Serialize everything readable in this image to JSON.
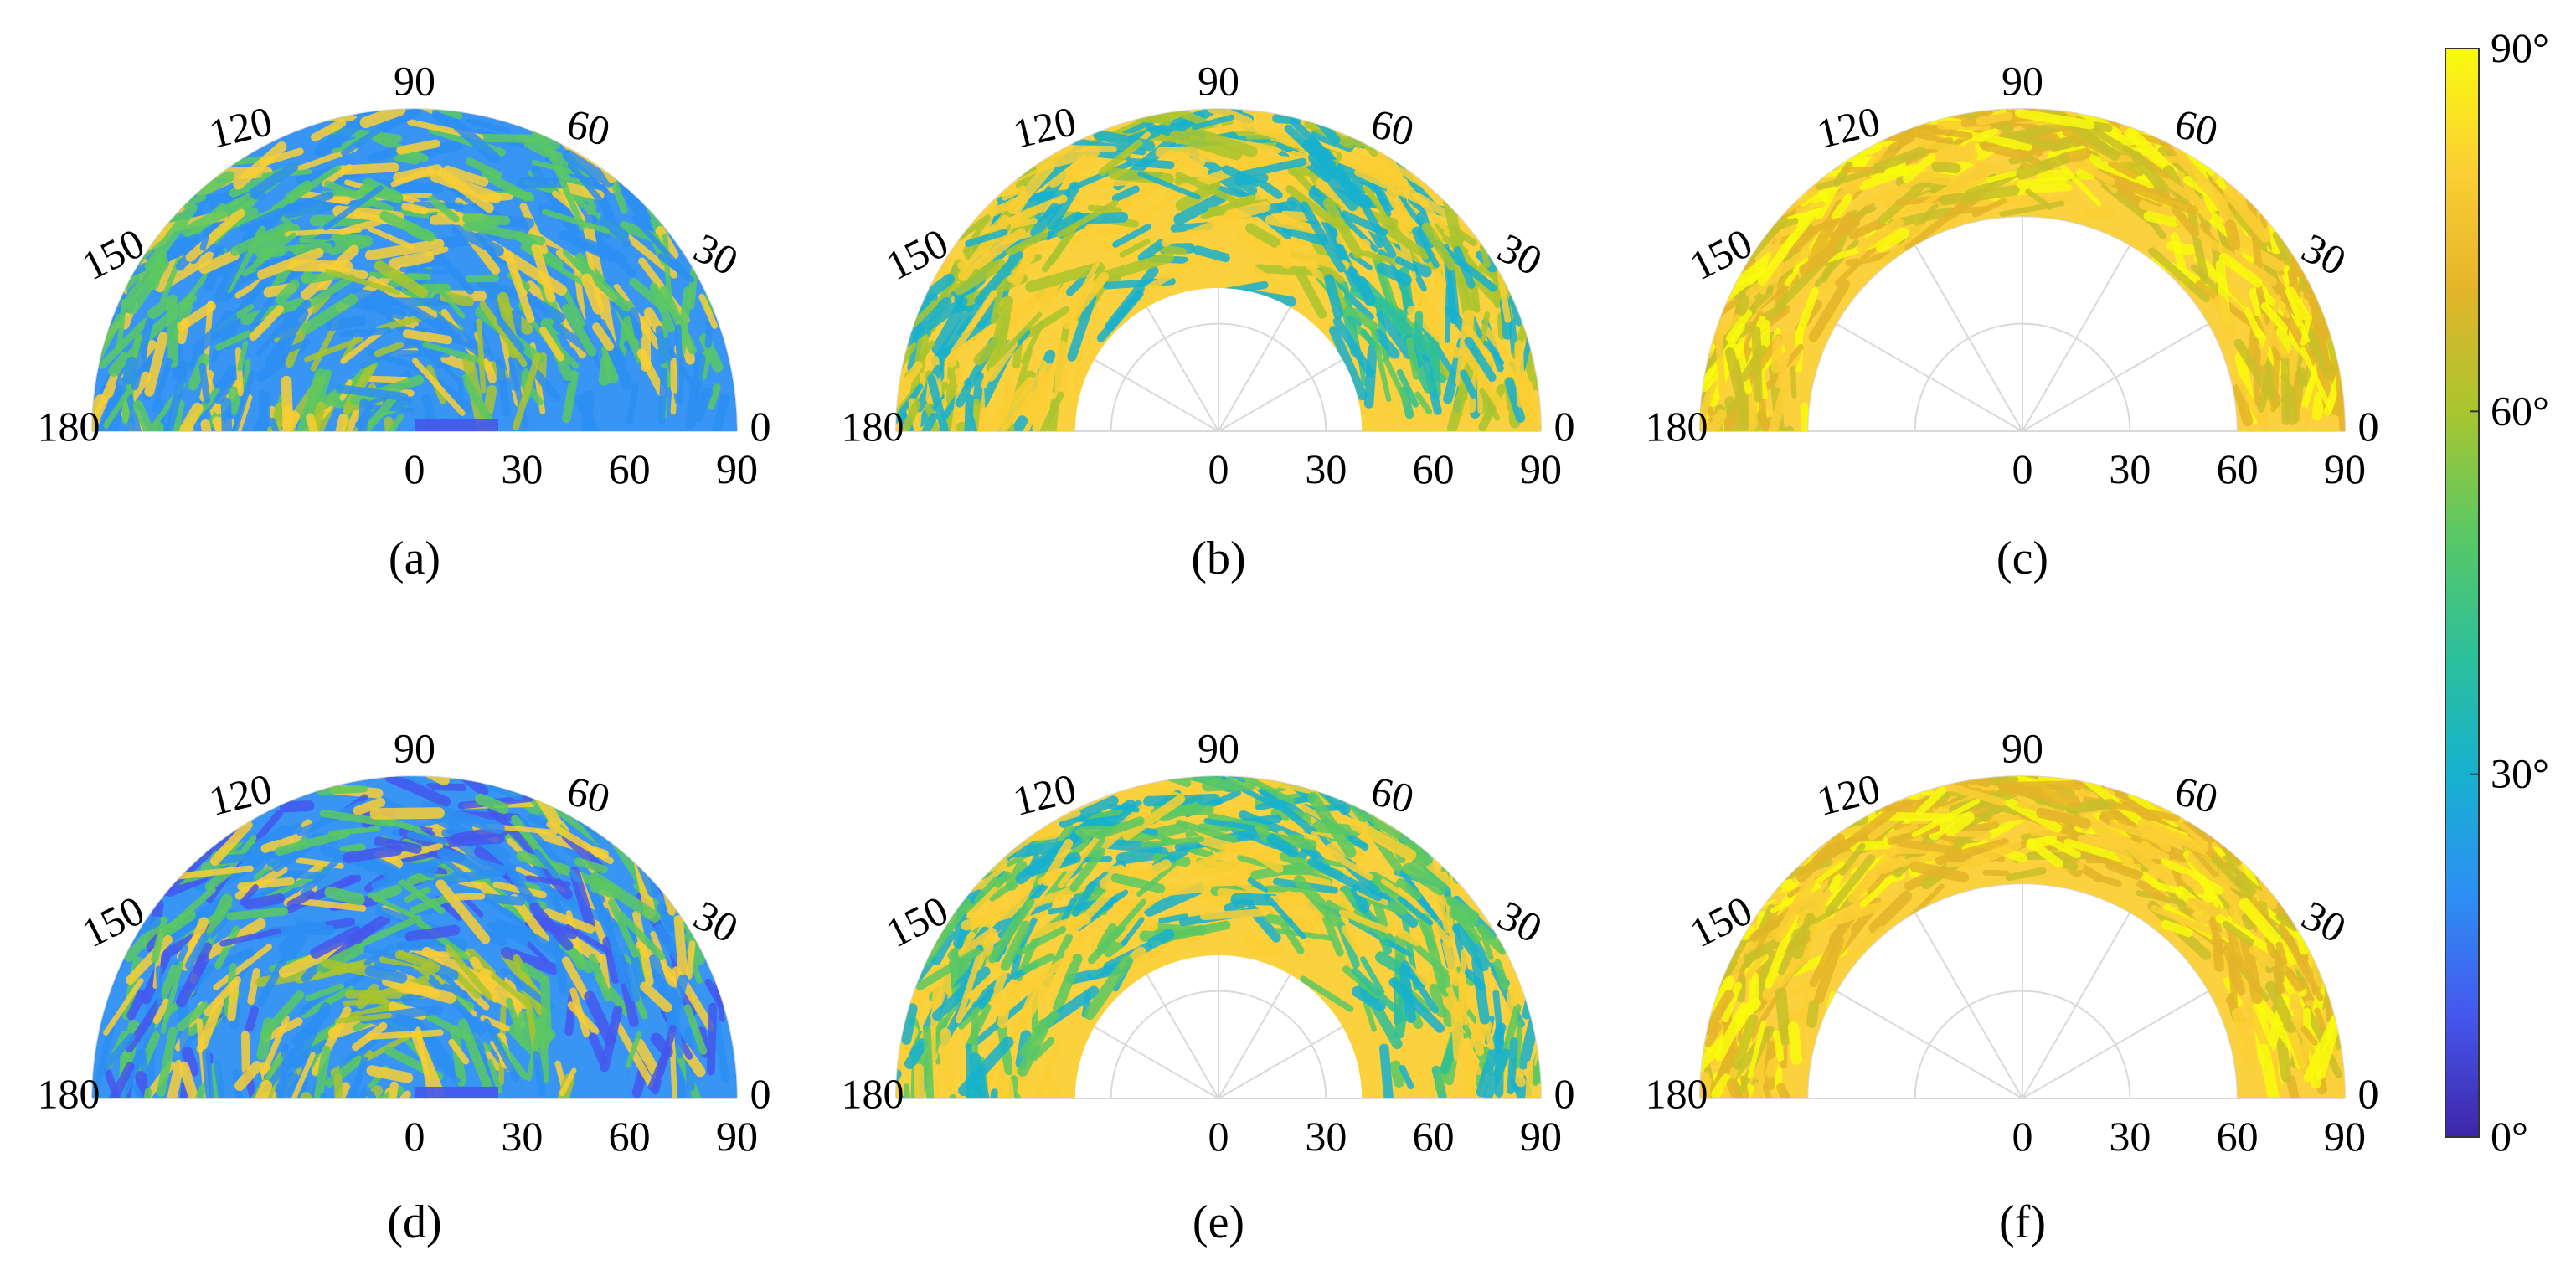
{
  "figure": {
    "colorbar": {
      "colormap": "parula",
      "range_deg": [
        0,
        90
      ],
      "tick_labels": [
        "0°",
        "30°",
        "60°",
        "90°"
      ],
      "tick_values": [
        0,
        30,
        60,
        90
      ],
      "stops": [
        "#3e26a8",
        "#4557ed",
        "#2d8ff3",
        "#17b1cf",
        "#2dc09a",
        "#5bc863",
        "#a9c52f",
        "#e4b42a",
        "#fbcf34",
        "#f9fb0e"
      ]
    },
    "panel_common": {
      "angular_tick_labels": [
        "0",
        "30",
        "60",
        "90",
        "120",
        "150",
        "180"
      ],
      "angular_ticks_deg": [
        0,
        30,
        60,
        90,
        120,
        150,
        180
      ],
      "radial_tick_labels": [
        "0",
        "30",
        "60",
        "90"
      ],
      "radial_ticks": [
        0,
        30,
        60,
        90
      ],
      "r_max": 90
    }
  },
  "chart_data": [
    {
      "type": "polar-scatter",
      "label": "(a)",
      "theta_range_deg": [
        0,
        180
      ],
      "r_range": [
        0,
        90
      ],
      "color_value": "deg",
      "dominant_colors": [
        "#2d8ff3",
        "#5bc863",
        "#fbcf34"
      ],
      "description_values": {
        "r_inner": 0,
        "r_outer": 90
      }
    },
    {
      "type": "polar-scatter",
      "label": "(b)",
      "theta_range_deg": [
        0,
        180
      ],
      "r_range": [
        40,
        90
      ],
      "color_value": "deg",
      "dominant_colors": [
        "#fbcf34",
        "#a9c52f",
        "#17b1cf"
      ],
      "description_values": {
        "r_inner": 40,
        "r_outer": 90
      }
    },
    {
      "type": "polar-scatter",
      "label": "(c)",
      "theta_range_deg": [
        0,
        180
      ],
      "r_range": [
        60,
        90
      ],
      "color_value": "deg",
      "dominant_colors": [
        "#fbcf34",
        "#e4b42a",
        "#c8c02a",
        "#f9fb0e"
      ],
      "description_values": {
        "r_inner": 60,
        "r_outer": 90
      }
    },
    {
      "type": "polar-scatter",
      "label": "(d)",
      "theta_range_deg": [
        0,
        180
      ],
      "r_range": [
        0,
        90
      ],
      "color_value": "deg",
      "dominant_colors": [
        "#2d8ff3",
        "#5bc863",
        "#fbcf34",
        "#4557ed"
      ],
      "description_values": {
        "r_inner": 0,
        "r_outer": 90
      }
    },
    {
      "type": "polar-scatter",
      "label": "(e)",
      "theta_range_deg": [
        0,
        180
      ],
      "r_range": [
        40,
        90
      ],
      "color_value": "deg",
      "dominant_colors": [
        "#fbcf34",
        "#5bc863",
        "#17b1cf"
      ],
      "description_values": {
        "r_inner": 40,
        "r_outer": 90
      }
    },
    {
      "type": "polar-scatter",
      "label": "(f)",
      "theta_range_deg": [
        0,
        180
      ],
      "r_range": [
        60,
        90
      ],
      "color_value": "deg",
      "dominant_colors": [
        "#fbcf34",
        "#e4b42a",
        "#c8c02a",
        "#f9fb0e"
      ],
      "description_values": {
        "r_inner": 60,
        "r_outer": 90
      }
    }
  ]
}
